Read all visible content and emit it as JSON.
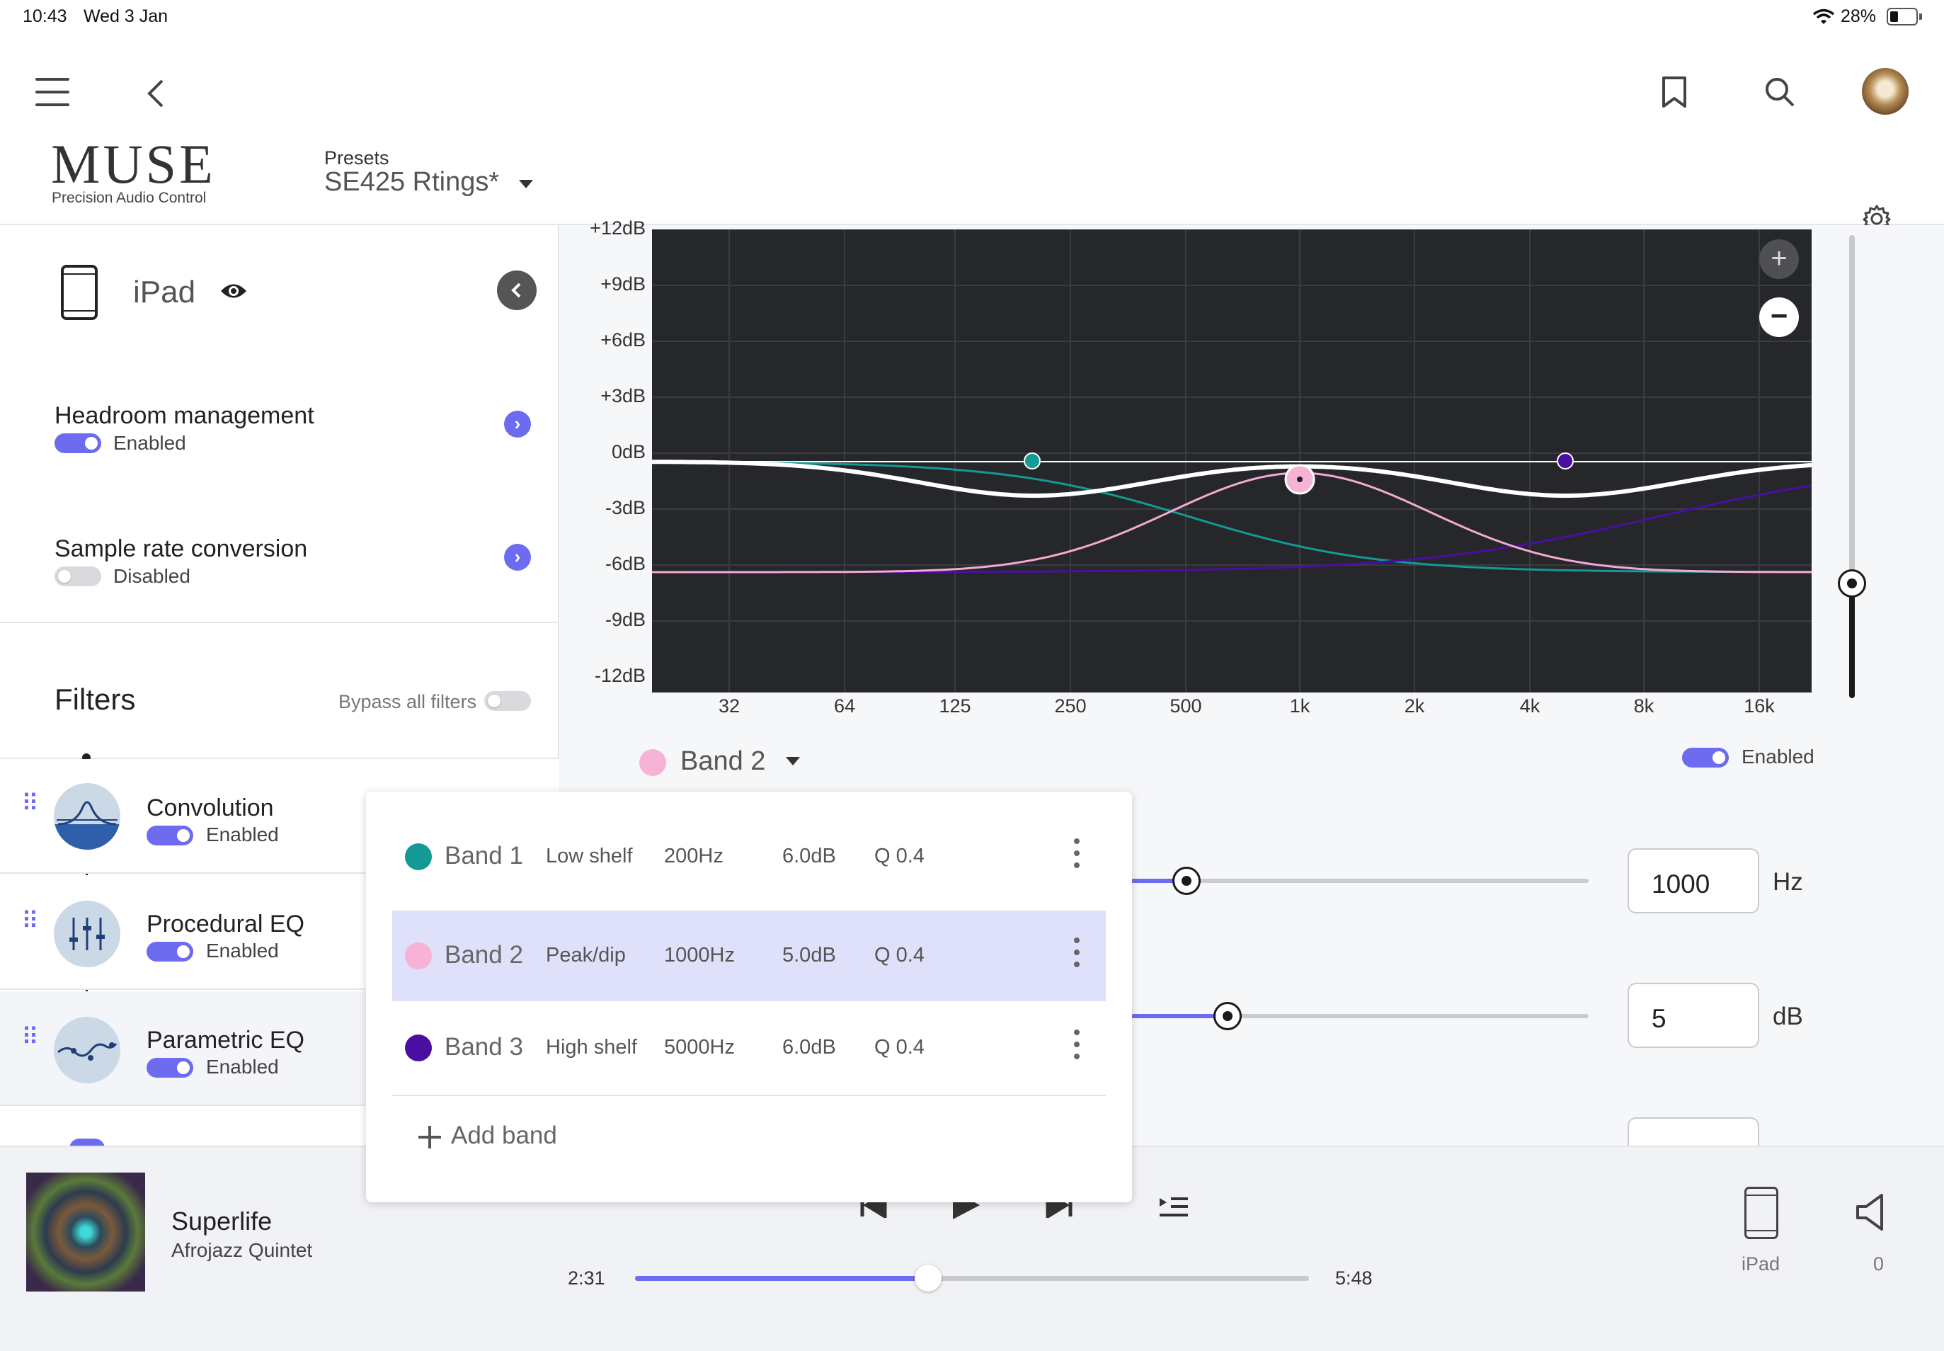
{
  "status": {
    "time": "10:43",
    "date": "Wed 3 Jan",
    "battery": "28%"
  },
  "header": {
    "logo": "MUSE",
    "logo_sub": "Precision Audio Control",
    "presets_label": "Presets",
    "preset_name": "SE425 Rtings*"
  },
  "device": {
    "name": "iPad"
  },
  "settings": [
    {
      "title": "Headroom management",
      "status": "Enabled",
      "on": true
    },
    {
      "title": "Sample rate conversion",
      "status": "Disabled",
      "on": false
    }
  ],
  "filters": {
    "title": "Filters",
    "bypass_label": "Bypass all filters",
    "items": [
      {
        "name": "Convolution",
        "status": "Enabled"
      },
      {
        "name": "Procedural EQ",
        "status": "Enabled"
      },
      {
        "name": "Parametric EQ",
        "status": "Enabled"
      }
    ]
  },
  "eq_graph": {
    "y_ticks": [
      "+12dB",
      "+9dB",
      "+6dB",
      "+3dB",
      "0dB",
      "-3dB",
      "-6dB",
      "-9dB",
      "-12dB"
    ],
    "x_ticks": [
      "32",
      "64",
      "125",
      "250",
      "500",
      "1k",
      "2k",
      "4k",
      "8k",
      "16k"
    ],
    "zoom_in": "+",
    "zoom_out": "−",
    "colors": {
      "bg": "#25272b",
      "band1": "#139a94",
      "band2": "#f5a9d2",
      "band3": "#4a0fa0",
      "sum": "#ffffff"
    }
  },
  "band_selector": {
    "label": "Band 2",
    "enabled_label": "Enabled"
  },
  "band_popup": {
    "bands": [
      {
        "name": "Band 1",
        "type": "Low shelf",
        "freq": "200Hz",
        "gain": "6.0dB",
        "q": "Q 0.4",
        "color": "#139a94"
      },
      {
        "name": "Band 2",
        "type": "Peak/dip",
        "freq": "1000Hz",
        "gain": "5.0dB",
        "q": "Q 0.4",
        "color": "#f6b3d6"
      },
      {
        "name": "Band 3",
        "type": "High shelf",
        "freq": "5000Hz",
        "gain": "6.0dB",
        "q": "Q 0.4",
        "color": "#4a0fa0"
      }
    ],
    "add_label": "Add band"
  },
  "params": {
    "freq_value": "1000",
    "freq_unit": "Hz",
    "gain_value": "5",
    "gain_unit": "dB"
  },
  "player": {
    "title": "Superlife",
    "artist": "Afrojazz Quintet",
    "elapsed": "2:31",
    "duration": "5:48",
    "progress": 0.435,
    "output_label": "iPad",
    "volume": "0"
  }
}
